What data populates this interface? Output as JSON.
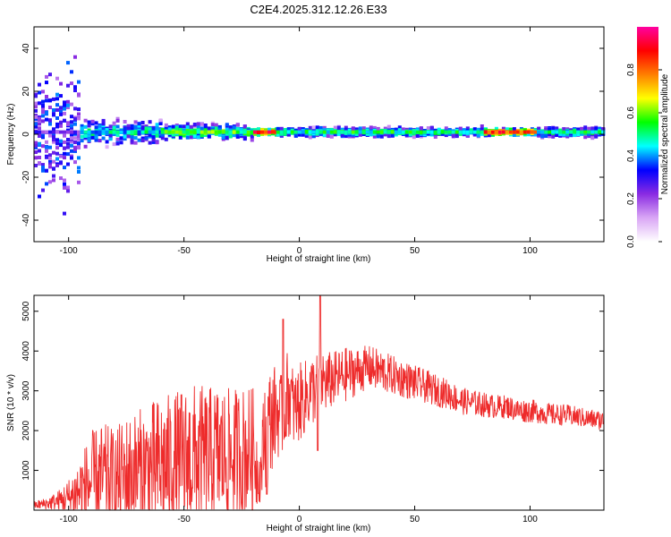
{
  "title": "C2E4.2025.312.12.26.E33",
  "chart_data": [
    {
      "type": "heatmap",
      "title": "C2E4.2025.312.12.26.E33",
      "xlabel": "Height of straight line (km)",
      "ylabel": "Frequency (Hz)",
      "xlim": [
        -115,
        132
      ],
      "ylim": [
        -50,
        50
      ],
      "xticks": [
        -100,
        -50,
        0,
        50,
        100
      ],
      "yticks": [
        -40,
        -20,
        0,
        20,
        40
      ],
      "colorbar": {
        "label": "Normalized spectral amplitude",
        "range": [
          0,
          1
        ],
        "ticks": [
          "0.0",
          "0.2",
          "0.4",
          "0.6",
          "0.8"
        ],
        "tick_values": [
          0.0,
          0.2,
          0.4,
          0.6,
          0.8
        ],
        "colors": [
          "#ffffff",
          "#d9a6f5",
          "#8a2be2",
          "#0000ff",
          "#00ffff",
          "#00ff00",
          "#ffff00",
          "#ff7f00",
          "#ff0000",
          "#ff00a0"
        ]
      },
      "band": {
        "center_hz": 1,
        "segments": [
          {
            "x": [
              -115,
              -95
            ],
            "intensity": 0.25,
            "spread_hz": 40
          },
          {
            "x": [
              -95,
              -60
            ],
            "intensity": 0.45,
            "spread_hz": 8
          },
          {
            "x": [
              -60,
              -20
            ],
            "intensity": 0.55,
            "spread_hz": 5
          },
          {
            "x": [
              -20,
              -10
            ],
            "intensity": 0.9,
            "spread_hz": 2
          },
          {
            "x": [
              -10,
              80
            ],
            "intensity": 0.5,
            "spread_hz": 3
          },
          {
            "x": [
              80,
              103
            ],
            "intensity": 0.85,
            "spread_hz": 2
          },
          {
            "x": [
              103,
              132
            ],
            "intensity": 0.5,
            "spread_hz": 3
          }
        ]
      }
    },
    {
      "type": "line",
      "xlabel": "Height of straight line (km)",
      "ylabel": "SNR (10 * v/v)",
      "xlim": [
        -115,
        132
      ],
      "ylim": [
        0,
        5400
      ],
      "xticks": [
        -100,
        -50,
        0,
        50,
        100
      ],
      "yticks": [
        1000,
        2000,
        3000,
        4000,
        5000
      ],
      "color": "#ee2b2b",
      "series": [
        {
          "name": "SNR",
          "x": [
            -115,
            -110,
            -105,
            -100,
            -95,
            -90,
            -85,
            -80,
            -75,
            -70,
            -65,
            -60,
            -55,
            -50,
            -45,
            -40,
            -35,
            -30,
            -25,
            -20,
            -17,
            -15,
            -10,
            -7,
            -5,
            -2,
            0,
            2,
            5,
            8,
            9,
            10,
            12,
            15,
            20,
            25,
            30,
            35,
            40,
            45,
            50,
            55,
            60,
            65,
            70,
            75,
            80,
            85,
            90,
            95,
            100,
            105,
            110,
            115,
            120,
            125,
            132
          ],
          "y": [
            120,
            160,
            220,
            300,
            500,
            700,
            800,
            750,
            900,
            950,
            1000,
            1100,
            1150,
            1200,
            1300,
            1300,
            1400,
            1350,
            1450,
            1500,
            800,
            2000,
            2500,
            2300,
            3000,
            2500,
            2700,
            2800,
            3000,
            3100,
            3000,
            3300,
            3200,
            3300,
            3400,
            3500,
            3600,
            3500,
            3400,
            3300,
            3200,
            3100,
            3000,
            2900,
            2750,
            2700,
            2650,
            2600,
            2600,
            2500,
            2500,
            2450,
            2400,
            2400,
            2350,
            2300,
            2250
          ],
          "noise_envelope": [
            100,
            150,
            250,
            500,
            900,
            1300,
            1400,
            1300,
            1500,
            1600,
            1700,
            1800,
            1800,
            1900,
            1900,
            1800,
            1800,
            1700,
            1700,
            1600,
            600,
            1500,
            1200,
            1000,
            1100,
            1000,
            1000,
            950,
            900,
            900,
            900,
            800,
            800,
            700,
            700,
            600,
            550,
            550,
            500,
            480,
            450,
            420,
            400,
            380,
            350,
            330,
            320,
            300,
            300,
            300,
            300,
            280,
            280,
            270,
            260,
            250,
            250
          ]
        }
      ],
      "notable_peaks": [
        {
          "x": -7,
          "y": 4800
        },
        {
          "x": 9,
          "y": 5400
        },
        {
          "x": 8,
          "y": 1500
        },
        {
          "x": -14,
          "y": 400
        }
      ]
    }
  ]
}
